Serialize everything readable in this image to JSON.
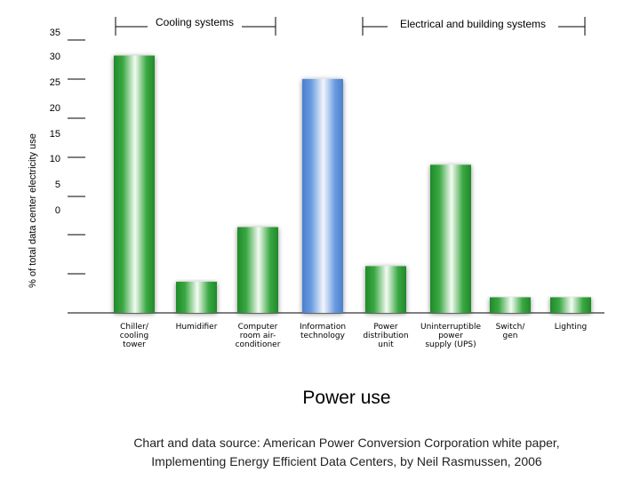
{
  "chart_data": {
    "type": "bar",
    "xlabel": "Power use",
    "ylabel": "% of total data center electricity use",
    "y_tick_labels": [
      "35",
      "30",
      "25",
      "20",
      "15",
      "10",
      "5",
      "0"
    ],
    "ylim": [
      0,
      35
    ],
    "categories": [
      [
        "Chiller/",
        "cooling",
        "tower"
      ],
      [
        "Humidifier"
      ],
      [
        "Computer",
        "room air-",
        "conditioner"
      ],
      [
        "Information",
        "technology"
      ],
      [
        "Power",
        "distribution",
        "unit"
      ],
      [
        "Uninterruptible",
        "power",
        "supply (UPS)"
      ],
      [
        "Switch/",
        "gen"
      ],
      [
        "Lighting"
      ]
    ],
    "values": [
      33,
      4,
      11,
      30,
      6,
      19,
      2,
      2
    ],
    "bar_colors": [
      "#2e9a36",
      "#2e9a36",
      "#2e9a36",
      "#5b8fd6",
      "#2e9a36",
      "#2e9a36",
      "#2e9a36",
      "#2e9a36"
    ],
    "groups": [
      {
        "label": "Cooling systems"
      },
      {
        "label": "Electrical and building systems"
      }
    ],
    "source": [
      "Chart and data source: American Power Conversion Corporation white paper,",
      "Implementing Energy Efficient Data Centers, by Neil Rasmussen, 2006"
    ],
    "grid": "left tick marks only",
    "legend": "none"
  }
}
